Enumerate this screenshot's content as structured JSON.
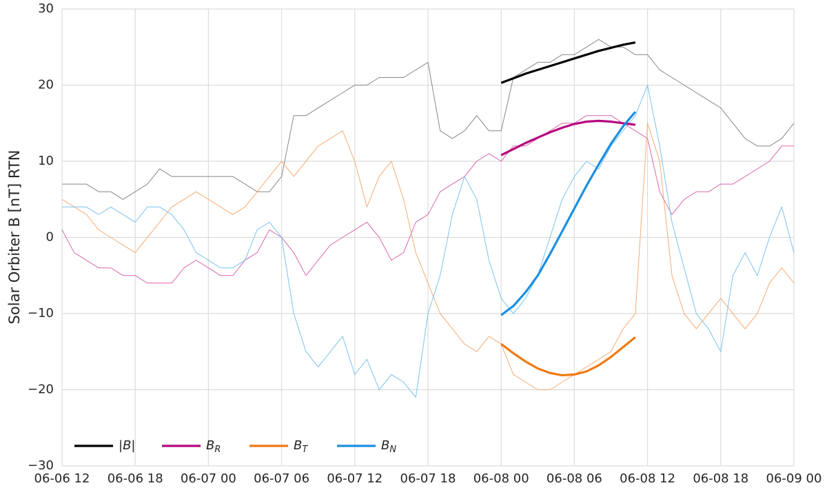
{
  "chart_data": {
    "type": "line",
    "ylabel": "Solar Orbiter B [nT] RTN",
    "xlim": [
      "06-06 12",
      "06-09 00"
    ],
    "xticks": [
      "06-06 12",
      "06-06 18",
      "06-07 00",
      "06-07 06",
      "06-07 12",
      "06-07 18",
      "06-08 00",
      "06-08 06",
      "06-08 12",
      "06-08 18",
      "06-09 00"
    ],
    "ylim": [
      -30,
      30
    ],
    "yticks": [
      {
        "value": -30,
        "label": "−30"
      },
      {
        "value": -20,
        "label": "−20"
      },
      {
        "value": -10,
        "label": "−10"
      },
      0,
      10,
      20,
      30
    ],
    "grid": true,
    "legend": "lower left",
    "x": [
      "06-06 12",
      "06-06 13",
      "06-06 14",
      "06-06 15",
      "06-06 16",
      "06-06 17",
      "06-06 18",
      "06-06 19",
      "06-06 20",
      "06-06 21",
      "06-06 22",
      "06-06 23",
      "06-07 00",
      "06-07 01",
      "06-07 02",
      "06-07 03",
      "06-07 04",
      "06-07 05",
      "06-07 06",
      "06-07 07",
      "06-07 08",
      "06-07 09",
      "06-07 10",
      "06-07 11",
      "06-07 12",
      "06-07 13",
      "06-07 14",
      "06-07 15",
      "06-07 16",
      "06-07 17",
      "06-07 18",
      "06-07 19",
      "06-07 20",
      "06-07 21",
      "06-07 22",
      "06-07 23",
      "06-08 00",
      "06-08 01",
      "06-08 02",
      "06-08 03",
      "06-08 04",
      "06-08 05",
      "06-08 06",
      "06-08 07",
      "06-08 08",
      "06-08 09",
      "06-08 10",
      "06-08 11",
      "06-08 12",
      "06-08 13",
      "06-08 14",
      "06-08 15",
      "06-08 16",
      "06-08 17",
      "06-08 18",
      "06-08 19",
      "06-08 20",
      "06-08 21",
      "06-08 22",
      "06-08 23",
      "06-09 00"
    ],
    "series": [
      {
        "color": "#808080",
        "values": [
          7,
          7,
          7,
          6,
          6,
          5,
          6,
          7,
          9,
          8,
          8,
          8,
          8,
          8,
          8,
          7,
          6,
          6,
          8,
          16,
          16,
          17,
          18,
          19,
          20,
          20,
          21,
          21,
          21,
          22,
          23,
          14,
          13,
          14,
          16,
          14,
          14,
          21,
          22,
          23,
          23,
          24,
          24,
          25,
          26,
          25,
          25,
          24,
          24,
          22,
          21,
          20,
          19,
          18,
          17,
          15,
          13,
          12,
          12,
          13,
          15
        ]
      },
      {
        "color": "#d660a8",
        "values": [
          1,
          -2,
          -3,
          -4,
          -4,
          -5,
          -5,
          -6,
          -6,
          -6,
          -4,
          -3,
          -4,
          -5,
          -5,
          -3,
          -2,
          1,
          0,
          -2,
          -5,
          -3,
          -1,
          0,
          1,
          2,
          0,
          -3,
          -2,
          2,
          3,
          6,
          7,
          8,
          10,
          11,
          10,
          12,
          12,
          13,
          14,
          15,
          15,
          16,
          16,
          16,
          15,
          14,
          13,
          6,
          3,
          5,
          6,
          6,
          7,
          7,
          8,
          9,
          10,
          12,
          12
        ]
      },
      {
        "color": "#f5a66b",
        "values": [
          5,
          4,
          3,
          1,
          0,
          -1,
          -2,
          0,
          2,
          4,
          5,
          6,
          5,
          4,
          3,
          4,
          6,
          8,
          10,
          8,
          10,
          12,
          13,
          14,
          10,
          4,
          8,
          10,
          5,
          -2,
          -6,
          -10,
          -12,
          -14,
          -15,
          -13,
          -14,
          -18,
          -19,
          -20,
          -20,
          -19,
          -18,
          -17,
          -16,
          -15,
          -12,
          -10,
          15,
          10,
          -5,
          -10,
          -12,
          -10,
          -8,
          -10,
          -12,
          -10,
          -6,
          -4,
          -6
        ]
      },
      {
        "color": "#72c0ec",
        "values": [
          4,
          4,
          4,
          3,
          4,
          3,
          2,
          4,
          4,
          3,
          1,
          -2,
          -3,
          -4,
          -4,
          -3,
          1,
          2,
          0,
          -10,
          -15,
          -17,
          -15,
          -13,
          -18,
          -16,
          -20,
          -18,
          -19,
          -21,
          -10,
          -5,
          3,
          8,
          5,
          -3,
          -8,
          -10,
          -8,
          -5,
          0,
          5,
          8,
          10,
          9,
          12,
          14,
          16,
          20,
          12,
          2,
          -4,
          -10,
          -12,
          -15,
          -5,
          -2,
          -5,
          0,
          4,
          -2
        ]
      }
    ],
    "fit_x": [
      "06-08 00",
      "06-08 01",
      "06-08 02",
      "06-08 03",
      "06-08 04",
      "06-08 05",
      "06-08 06",
      "06-08 07",
      "06-08 08",
      "06-08 09",
      "06-08 10",
      "06-08 11"
    ],
    "fit_series": [
      {
        "name": "|B|",
        "color": "#000000",
        "values": [
          20.3,
          20.9,
          21.5,
          22,
          22.5,
          23,
          23.5,
          24,
          24.5,
          24.9,
          25.3,
          25.6
        ]
      },
      {
        "name": "BR",
        "color": "#b5077f",
        "values": [
          10.8,
          11.6,
          12.4,
          13.1,
          13.8,
          14.4,
          14.9,
          15.2,
          15.3,
          15.2,
          15,
          14.8
        ]
      },
      {
        "name": "BT",
        "color": "#f07a14",
        "values": [
          -14,
          -15.2,
          -16.3,
          -17.2,
          -17.8,
          -18.1,
          -18,
          -17.6,
          -16.8,
          -15.7,
          -14.4,
          -13.1
        ]
      },
      {
        "name": "BN",
        "color": "#1a8fe0",
        "values": [
          -10.2,
          -9,
          -7.2,
          -5,
          -2.2,
          0.8,
          3.8,
          6.8,
          9.6,
          12.3,
          14.6,
          16.5
        ]
      }
    ]
  }
}
